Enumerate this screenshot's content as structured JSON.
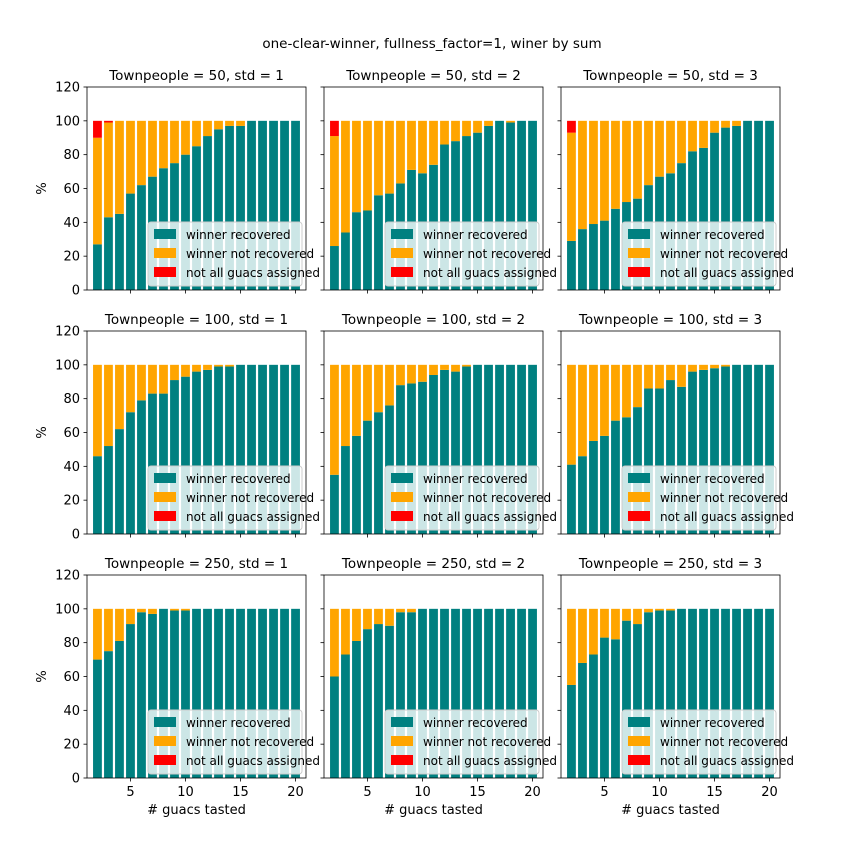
{
  "suptitle": "one-clear-winner, fullness_factor=1, winer by sum",
  "colors": {
    "recovered": "#008080",
    "not_recovered": "#ffa500",
    "not_assigned": "#ff0000"
  },
  "legend": {
    "entries": [
      "winner recovered",
      "winner not recovered",
      "not all guacs assigned"
    ],
    "placement": "lower-right"
  },
  "chart_data": [
    {
      "type": "bar",
      "stacked": true,
      "title": "Townpeople = 50, std = 1",
      "xlabel": "",
      "ylabel": "%",
      "ylim": [
        0,
        120
      ],
      "yticks": [
        0,
        20,
        40,
        60,
        80,
        100,
        120
      ],
      "xticks": [
        5,
        10,
        15,
        20
      ],
      "x": [
        2,
        3,
        4,
        5,
        6,
        7,
        8,
        9,
        10,
        11,
        12,
        13,
        14,
        15,
        16,
        17,
        18,
        19,
        20
      ],
      "series": [
        {
          "name": "winner recovered",
          "values": [
            27,
            43,
            45,
            57,
            62,
            67,
            72,
            75,
            80,
            85,
            91,
            95,
            97,
            97,
            100,
            100,
            100,
            100,
            100
          ]
        },
        {
          "name": "winner not recovered",
          "values": [
            63,
            56,
            55,
            43,
            38,
            33,
            28,
            25,
            20,
            15,
            9,
            5,
            3,
            3,
            0,
            0,
            0,
            0,
            0
          ]
        },
        {
          "name": "not all guacs assigned",
          "values": [
            10,
            1,
            0,
            0,
            0,
            0,
            0,
            0,
            0,
            0,
            0,
            0,
            0,
            0,
            0,
            0,
            0,
            0,
            0
          ]
        }
      ]
    },
    {
      "type": "bar",
      "stacked": true,
      "title": "Townpeople = 50, std = 2",
      "xlabel": "",
      "ylabel": "",
      "ylim": [
        0,
        120
      ],
      "yticks": [
        0,
        20,
        40,
        60,
        80,
        100,
        120
      ],
      "xticks": [
        5,
        10,
        15,
        20
      ],
      "x": [
        2,
        3,
        4,
        5,
        6,
        7,
        8,
        9,
        10,
        11,
        12,
        13,
        14,
        15,
        16,
        17,
        18,
        19,
        20
      ],
      "series": [
        {
          "name": "winner recovered",
          "values": [
            26,
            34,
            46,
            47,
            56,
            57,
            63,
            71,
            69,
            74,
            86,
            88,
            91,
            93,
            97,
            100,
            99,
            100,
            100
          ]
        },
        {
          "name": "winner not recovered",
          "values": [
            65,
            66,
            54,
            53,
            44,
            43,
            37,
            29,
            31,
            26,
            14,
            12,
            9,
            7,
            3,
            0,
            1,
            0,
            0
          ]
        },
        {
          "name": "not all guacs assigned",
          "values": [
            9,
            0,
            0,
            0,
            0,
            0,
            0,
            0,
            0,
            0,
            0,
            0,
            0,
            0,
            0,
            0,
            0,
            0,
            0
          ]
        }
      ]
    },
    {
      "type": "bar",
      "stacked": true,
      "title": "Townpeople = 50, std = 3",
      "xlabel": "",
      "ylabel": "",
      "ylim": [
        0,
        120
      ],
      "yticks": [
        0,
        20,
        40,
        60,
        80,
        100,
        120
      ],
      "xticks": [
        5,
        10,
        15,
        20
      ],
      "x": [
        2,
        3,
        4,
        5,
        6,
        7,
        8,
        9,
        10,
        11,
        12,
        13,
        14,
        15,
        16,
        17,
        18,
        19,
        20
      ],
      "series": [
        {
          "name": "winner recovered",
          "values": [
            29,
            36,
            39,
            41,
            48,
            52,
            54,
            62,
            67,
            69,
            75,
            82,
            84,
            93,
            96,
            97,
            100,
            100,
            100
          ]
        },
        {
          "name": "winner not recovered",
          "values": [
            64,
            64,
            61,
            59,
            52,
            48,
            46,
            38,
            33,
            31,
            25,
            18,
            16,
            7,
            4,
            3,
            0,
            0,
            0
          ]
        },
        {
          "name": "not all guacs assigned",
          "values": [
            7,
            0,
            0,
            0,
            0,
            0,
            0,
            0,
            0,
            0,
            0,
            0,
            0,
            0,
            0,
            0,
            0,
            0,
            0
          ]
        }
      ]
    },
    {
      "type": "bar",
      "stacked": true,
      "title": "Townpeople = 100, std = 1",
      "xlabel": "",
      "ylabel": "%",
      "ylim": [
        0,
        120
      ],
      "yticks": [
        0,
        20,
        40,
        60,
        80,
        100,
        120
      ],
      "xticks": [
        5,
        10,
        15,
        20
      ],
      "x": [
        2,
        3,
        4,
        5,
        6,
        7,
        8,
        9,
        10,
        11,
        12,
        13,
        14,
        15,
        16,
        17,
        18,
        19,
        20
      ],
      "series": [
        {
          "name": "winner recovered",
          "values": [
            46,
            52,
            62,
            72,
            79,
            83,
            83,
            91,
            93,
            96,
            97,
            99,
            99,
            100,
            100,
            100,
            100,
            100,
            100
          ]
        },
        {
          "name": "winner not recovered",
          "values": [
            54,
            48,
            38,
            28,
            21,
            17,
            17,
            9,
            7,
            4,
            3,
            1,
            1,
            0,
            0,
            0,
            0,
            0,
            0
          ]
        },
        {
          "name": "not all guacs assigned",
          "values": [
            0,
            0,
            0,
            0,
            0,
            0,
            0,
            0,
            0,
            0,
            0,
            0,
            0,
            0,
            0,
            0,
            0,
            0,
            0
          ]
        }
      ]
    },
    {
      "type": "bar",
      "stacked": true,
      "title": "Townpeople = 100, std = 2",
      "xlabel": "",
      "ylabel": "",
      "ylim": [
        0,
        120
      ],
      "yticks": [
        0,
        20,
        40,
        60,
        80,
        100,
        120
      ],
      "xticks": [
        5,
        10,
        15,
        20
      ],
      "x": [
        2,
        3,
        4,
        5,
        6,
        7,
        8,
        9,
        10,
        11,
        12,
        13,
        14,
        15,
        16,
        17,
        18,
        19,
        20
      ],
      "series": [
        {
          "name": "winner recovered",
          "values": [
            35,
            52,
            58,
            67,
            72,
            76,
            88,
            89,
            90,
            94,
            97,
            96,
            99,
            100,
            100,
            100,
            100,
            100,
            100
          ]
        },
        {
          "name": "winner not recovered",
          "values": [
            65,
            48,
            42,
            33,
            28,
            24,
            12,
            11,
            10,
            6,
            3,
            4,
            1,
            0,
            0,
            0,
            0,
            0,
            0
          ]
        },
        {
          "name": "not all guacs assigned",
          "values": [
            0,
            0,
            0,
            0,
            0,
            0,
            0,
            0,
            0,
            0,
            0,
            0,
            0,
            0,
            0,
            0,
            0,
            0,
            0
          ]
        }
      ]
    },
    {
      "type": "bar",
      "stacked": true,
      "title": "Townpeople = 100, std = 3",
      "xlabel": "",
      "ylabel": "",
      "ylim": [
        0,
        120
      ],
      "yticks": [
        0,
        20,
        40,
        60,
        80,
        100,
        120
      ],
      "xticks": [
        5,
        10,
        15,
        20
      ],
      "x": [
        2,
        3,
        4,
        5,
        6,
        7,
        8,
        9,
        10,
        11,
        12,
        13,
        14,
        15,
        16,
        17,
        18,
        19,
        20
      ],
      "series": [
        {
          "name": "winner recovered",
          "values": [
            41,
            46,
            55,
            58,
            67,
            69,
            75,
            86,
            86,
            91,
            87,
            96,
            97,
            98,
            99,
            100,
            100,
            100,
            100
          ]
        },
        {
          "name": "winner not recovered",
          "values": [
            59,
            54,
            45,
            42,
            33,
            31,
            25,
            14,
            14,
            9,
            13,
            4,
            3,
            2,
            1,
            0,
            0,
            0,
            0
          ]
        },
        {
          "name": "not all guacs assigned",
          "values": [
            0,
            0,
            0,
            0,
            0,
            0,
            0,
            0,
            0,
            0,
            0,
            0,
            0,
            0,
            0,
            0,
            0,
            0,
            0
          ]
        }
      ]
    },
    {
      "type": "bar",
      "stacked": true,
      "title": "Townpeople = 250, std = 1",
      "xlabel": "# guacs tasted",
      "ylabel": "%",
      "ylim": [
        0,
        120
      ],
      "yticks": [
        0,
        20,
        40,
        60,
        80,
        100,
        120
      ],
      "xticks": [
        5,
        10,
        15,
        20
      ],
      "x": [
        2,
        3,
        4,
        5,
        6,
        7,
        8,
        9,
        10,
        11,
        12,
        13,
        14,
        15,
        16,
        17,
        18,
        19,
        20
      ],
      "series": [
        {
          "name": "winner recovered",
          "values": [
            70,
            75,
            81,
            91,
            98,
            97,
            100,
            99,
            99,
            100,
            100,
            100,
            100,
            100,
            100,
            100,
            100,
            100,
            100
          ]
        },
        {
          "name": "winner not recovered",
          "values": [
            30,
            25,
            19,
            9,
            2,
            3,
            0,
            1,
            1,
            0,
            0,
            0,
            0,
            0,
            0,
            0,
            0,
            0,
            0
          ]
        },
        {
          "name": "not all guacs assigned",
          "values": [
            0,
            0,
            0,
            0,
            0,
            0,
            0,
            0,
            0,
            0,
            0,
            0,
            0,
            0,
            0,
            0,
            0,
            0,
            0
          ]
        }
      ]
    },
    {
      "type": "bar",
      "stacked": true,
      "title": "Townpeople = 250, std = 2",
      "xlabel": "# guacs tasted",
      "ylabel": "",
      "ylim": [
        0,
        120
      ],
      "yticks": [
        0,
        20,
        40,
        60,
        80,
        100,
        120
      ],
      "xticks": [
        5,
        10,
        15,
        20
      ],
      "x": [
        2,
        3,
        4,
        5,
        6,
        7,
        8,
        9,
        10,
        11,
        12,
        13,
        14,
        15,
        16,
        17,
        18,
        19,
        20
      ],
      "series": [
        {
          "name": "winner recovered",
          "values": [
            60,
            73,
            81,
            88,
            91,
            90,
            98,
            98,
            100,
            100,
            100,
            100,
            100,
            100,
            100,
            100,
            100,
            100,
            100
          ]
        },
        {
          "name": "winner not recovered",
          "values": [
            40,
            27,
            19,
            12,
            9,
            10,
            2,
            2,
            0,
            0,
            0,
            0,
            0,
            0,
            0,
            0,
            0,
            0,
            0
          ]
        },
        {
          "name": "not all guacs assigned",
          "values": [
            0,
            0,
            0,
            0,
            0,
            0,
            0,
            0,
            0,
            0,
            0,
            0,
            0,
            0,
            0,
            0,
            0,
            0,
            0
          ]
        }
      ]
    },
    {
      "type": "bar",
      "stacked": true,
      "title": "Townpeople = 250, std = 3",
      "xlabel": "# guacs tasted",
      "ylabel": "",
      "ylim": [
        0,
        120
      ],
      "yticks": [
        0,
        20,
        40,
        60,
        80,
        100,
        120
      ],
      "xticks": [
        5,
        10,
        15,
        20
      ],
      "x": [
        2,
        3,
        4,
        5,
        6,
        7,
        8,
        9,
        10,
        11,
        12,
        13,
        14,
        15,
        16,
        17,
        18,
        19,
        20
      ],
      "series": [
        {
          "name": "winner recovered",
          "values": [
            55,
            68,
            73,
            83,
            82,
            93,
            91,
            98,
            99,
            99,
            100,
            100,
            100,
            100,
            100,
            100,
            100,
            100,
            100
          ]
        },
        {
          "name": "winner not recovered",
          "values": [
            45,
            32,
            27,
            17,
            18,
            7,
            9,
            2,
            1,
            1,
            0,
            0,
            0,
            0,
            0,
            0,
            0,
            0,
            0
          ]
        },
        {
          "name": "not all guacs assigned",
          "values": [
            0,
            0,
            0,
            0,
            0,
            0,
            0,
            0,
            0,
            0,
            0,
            0,
            0,
            0,
            0,
            0,
            0,
            0,
            0
          ]
        }
      ]
    }
  ]
}
